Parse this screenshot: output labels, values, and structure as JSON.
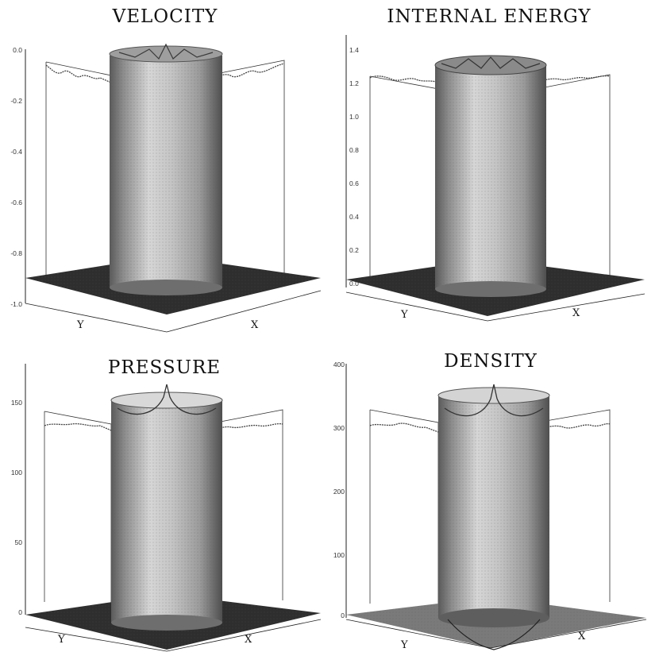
{
  "chart_data": [
    {
      "type": "surface",
      "title": "VELOCITY",
      "xlabel": "X",
      "ylabel": "Y",
      "zlim": [
        -1.0,
        0.0
      ],
      "zticks": [
        "0.0",
        "-0.2",
        "-0.4",
        "-0.6",
        "-0.8",
        "-1.0"
      ],
      "base_value": -0.9,
      "plateau_value": -0.03
    },
    {
      "type": "surface",
      "title": "INTERNAL ENERGY",
      "xlabel": "X",
      "ylabel": "Y",
      "zlim": [
        0.0,
        1.4
      ],
      "zticks": [
        "1.4",
        "1.2",
        "1.0",
        "0.8",
        "0.6",
        "0.4",
        "0.2",
        "0.0"
      ],
      "base_value": 0.0,
      "plateau_value": 1.3
    },
    {
      "type": "surface",
      "title": "PRESSURE",
      "xlabel": "X",
      "ylabel": "Y",
      "zlim": [
        0,
        170
      ],
      "zticks": [
        "150",
        "100",
        "50",
        "0"
      ],
      "base_value": 0,
      "plateau_value": 150
    },
    {
      "type": "surface",
      "title": "DENSITY",
      "xlabel": "X",
      "ylabel": "Y",
      "zlim": [
        0,
        400
      ],
      "zticks": [
        "400",
        "300",
        "200",
        "100",
        "0"
      ],
      "base_value": 0,
      "plateau_value": 340
    }
  ]
}
